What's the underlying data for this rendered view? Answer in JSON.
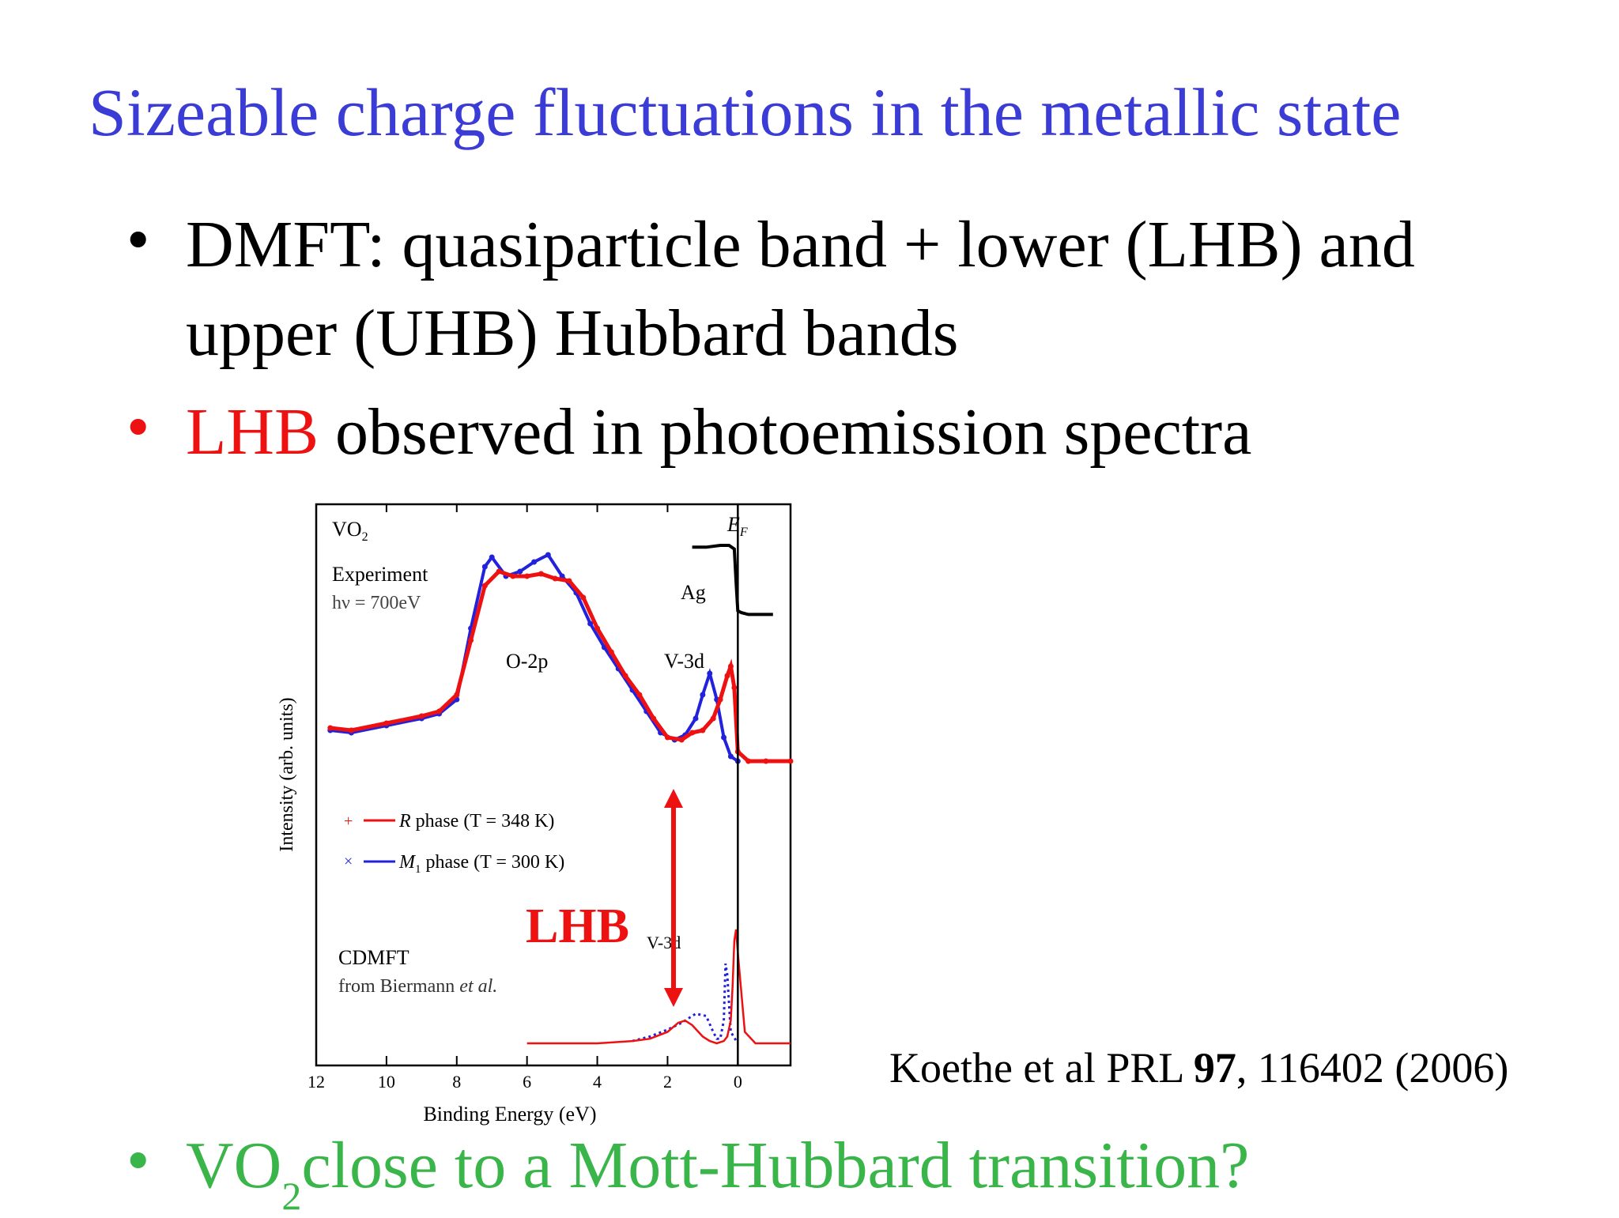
{
  "slide": {
    "title": "Sizeable charge fluctuations in the metallic state",
    "bullets": [
      {
        "line1": "DMFT: quasiparticle band + lower (LHB) and",
        "line2": "upper (UHB) Hubbard bands"
      },
      {
        "red": "LHB",
        "rest": " observed in photoemission spectra"
      },
      {
        "pre": "VO",
        "sub": "2",
        "post": "close to a Mott-Hubbard transition?"
      }
    ],
    "bullet_symbol": "•",
    "reference": {
      "authors": "Koethe et al PRL ",
      "volume": "97",
      "rest": ", 116402 (2006)"
    },
    "colors": {
      "title": "#3b3bd6",
      "lhb": "#ee1111",
      "question": "#39b54a",
      "series_R": "#ee1111",
      "series_M1": "#2222dd"
    }
  },
  "chart_data": {
    "type": "line",
    "xlabel": "Binding Energy (eV)",
    "ylabel": "Intensity (arb. units)",
    "xlim": [
      12,
      -1.5
    ],
    "x_ticks": [
      12,
      10,
      8,
      6,
      4,
      2,
      0
    ],
    "labels": {
      "compound": "VO",
      "compound_sub": "2",
      "experiment": "Experiment",
      "photon": "hν = 700eV",
      "o2p": "O-2p",
      "v3d": "V-3d",
      "v3d_theory": "V-3d",
      "ag": "Ag",
      "ef": "E",
      "ef_sub": "F",
      "cdmft": "CDMFT",
      "from": "from Biermann ",
      "etal": "et al.",
      "lhb": "LHB"
    },
    "legend": [
      {
        "marker": "+",
        "name": "R",
        "rest": " phase (T = 348 K)",
        "color": "#ee1111"
      },
      {
        "marker": "×",
        "name": "M",
        "sub": "1",
        "rest": " phase (T = 300 K)",
        "color": "#2222dd"
      }
    ],
    "series": [
      {
        "name": "R phase (T = 348 K)",
        "color": "#ee1111",
        "x": [
          11.6,
          11.0,
          10.0,
          9.0,
          8.5,
          8.0,
          7.6,
          7.2,
          6.8,
          6.4,
          6.0,
          5.6,
          5.2,
          4.8,
          4.4,
          4.0,
          3.6,
          3.2,
          2.8,
          2.4,
          2.0,
          1.6,
          1.3,
          1.0,
          0.7,
          0.5,
          0.3,
          0.2,
          0.1,
          0.0,
          -0.3,
          -0.8,
          -1.5
        ],
        "y": [
          0.18,
          0.17,
          0.2,
          0.23,
          0.25,
          0.32,
          0.55,
          0.78,
          0.84,
          0.82,
          0.82,
          0.83,
          0.81,
          0.8,
          0.73,
          0.6,
          0.5,
          0.4,
          0.32,
          0.22,
          0.14,
          0.13,
          0.16,
          0.17,
          0.22,
          0.3,
          0.4,
          0.44,
          0.35,
          0.08,
          0.04,
          0.04,
          0.04
        ]
      },
      {
        "name": "M1 phase (T = 300 K)",
        "color": "#2222dd",
        "x": [
          11.6,
          11.0,
          10.0,
          9.0,
          8.5,
          8.0,
          7.6,
          7.2,
          7.0,
          6.6,
          6.2,
          5.8,
          5.4,
          5.0,
          4.6,
          4.2,
          3.8,
          3.4,
          3.0,
          2.6,
          2.2,
          1.8,
          1.5,
          1.2,
          1.0,
          0.8,
          0.6,
          0.4,
          0.2,
          0.0
        ],
        "y": [
          0.17,
          0.16,
          0.19,
          0.22,
          0.24,
          0.3,
          0.6,
          0.86,
          0.9,
          0.82,
          0.84,
          0.88,
          0.91,
          0.82,
          0.75,
          0.62,
          0.52,
          0.43,
          0.34,
          0.25,
          0.16,
          0.13,
          0.15,
          0.22,
          0.32,
          0.41,
          0.3,
          0.14,
          0.06,
          0.04
        ]
      },
      {
        "name": "Ag",
        "color": "#000000",
        "x": [
          1.3,
          0.9,
          0.5,
          0.25,
          0.1,
          0.05,
          0.0,
          -0.1,
          -0.3,
          -0.6,
          -1.0
        ],
        "y": [
          0.99,
          0.99,
          1.0,
          1.0,
          0.98,
          0.8,
          0.64,
          0.63,
          0.62,
          0.62,
          0.62
        ]
      },
      {
        "name": "CDMFT (R)",
        "color": "#ee1111",
        "x": [
          6.0,
          5.0,
          4.0,
          3.0,
          2.5,
          2.0,
          1.7,
          1.5,
          1.3,
          1.0,
          0.8,
          0.6,
          0.4,
          0.3,
          0.2,
          0.15,
          0.1,
          0.05,
          0.0,
          -0.2,
          -0.5,
          -1.0,
          -1.5
        ],
        "y": [
          0.0,
          0.0,
          0.0,
          0.01,
          0.02,
          0.05,
          0.09,
          0.1,
          0.08,
          0.03,
          0.01,
          0.0,
          0.01,
          0.03,
          0.1,
          0.25,
          0.45,
          0.5,
          0.4,
          0.05,
          0.0,
          0.0,
          0.0
        ]
      },
      {
        "name": "CDMFT (M1)",
        "color": "#2222dd",
        "x": [
          3.0,
          2.5,
          2.0,
          1.6,
          1.2,
          0.9,
          0.7,
          0.6,
          0.5,
          0.4,
          0.35,
          0.3,
          0.2,
          0.0
        ],
        "y": [
          0.01,
          0.03,
          0.06,
          0.09,
          0.13,
          0.12,
          0.05,
          0.02,
          0.02,
          0.1,
          0.35,
          0.3,
          0.05,
          0.0
        ]
      }
    ]
  }
}
